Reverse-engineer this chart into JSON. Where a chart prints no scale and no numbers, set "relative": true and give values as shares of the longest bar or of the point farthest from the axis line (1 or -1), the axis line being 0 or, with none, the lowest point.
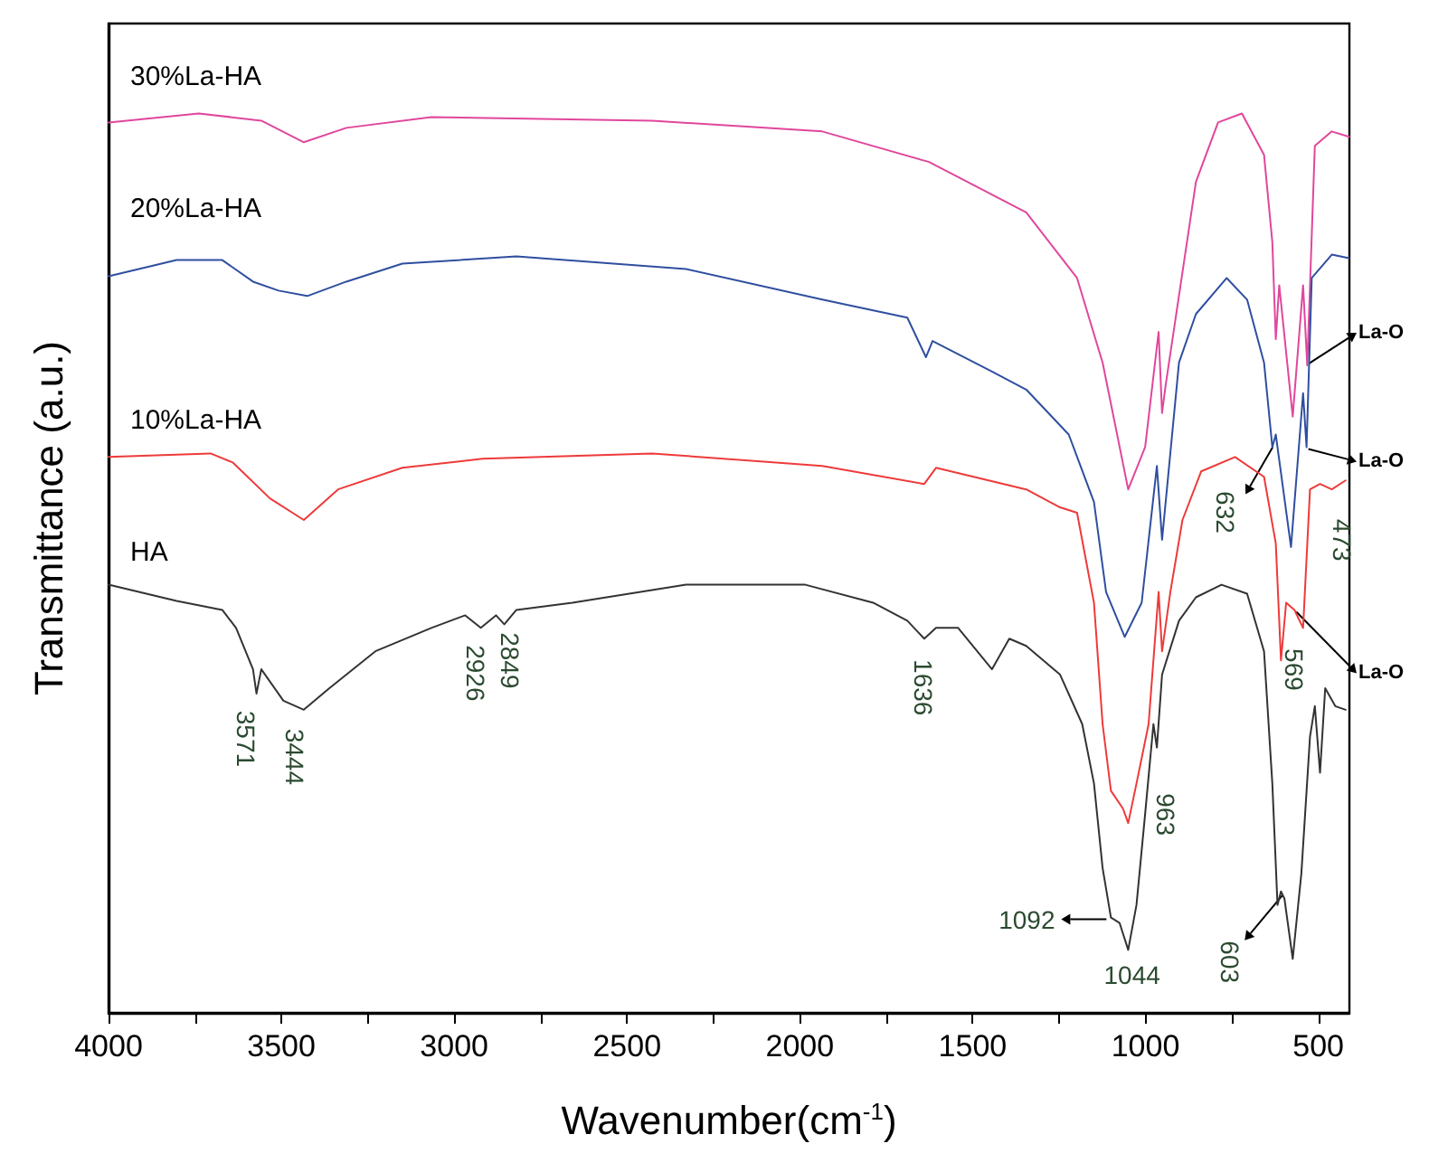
{
  "chart_data": {
    "type": "line",
    "relative": true,
    "xlabel": "Wavenumber(cm$^{-1}$)",
    "ylabel": "Transmittance (a.u.)",
    "xlim": [
      4000,
      410
    ],
    "xticks": [
      4000,
      {
        "value": 3750,
        "label": null
      },
      3500,
      {
        "value": 3250,
        "label": null
      },
      3000,
      {
        "value": 2750,
        "label": null
      },
      2500,
      {
        "value": 2250,
        "label": null
      },
      2000,
      {
        "value": 1750,
        "label": null
      },
      1500,
      {
        "value": 1250,
        "label": null
      },
      1000,
      {
        "value": 750,
        "label": null
      },
      500
    ],
    "grid": false,
    "legend": false,
    "marker": "none",
    "line_style": "solid",
    "series": [
      {
        "name": "30%La-HA",
        "color": "#e0479c",
        "x": [
          4000,
          3739,
          3558,
          3435,
          3312,
          3066,
          2427,
          1935,
          1626,
          1345,
          1198,
          1124,
          1050,
          1001,
          962,
          952,
          942,
          854,
          790,
          721,
          657,
          633,
          623,
          613,
          574,
          544,
          532,
          510,
          461,
          411
        ],
        "values": [
          0.99,
          1.0,
          0.992,
          0.968,
          0.984,
          0.996,
          0.992,
          0.98,
          0.946,
          0.89,
          0.817,
          0.723,
          0.582,
          0.629,
          0.757,
          0.667,
          0.697,
          0.924,
          0.99,
          1.0,
          0.954,
          0.857,
          0.749,
          0.809,
          0.663,
          0.809,
          0.72,
          0.964,
          0.98,
          0.974
        ]
      },
      {
        "name": "20%La-HA",
        "color": "#2f4f9f",
        "x": [
          4000,
          3803,
          3671,
          3582,
          3508,
          3425,
          3312,
          3150,
          2820,
          2329,
          1935,
          1689,
          1635,
          1616,
          1444,
          1345,
          1222,
          1149,
          1114,
          1060,
          1011,
          967,
          952,
          903,
          854,
          765,
          706,
          657,
          633,
          623,
          579,
          544,
          534,
          519,
          461,
          411
        ],
        "values": [
          0.819,
          0.837,
          0.837,
          0.813,
          0.803,
          0.797,
          0.813,
          0.833,
          0.841,
          0.827,
          0.793,
          0.773,
          0.729,
          0.747,
          0.713,
          0.693,
          0.643,
          0.568,
          0.468,
          0.418,
          0.456,
          0.608,
          0.526,
          0.723,
          0.777,
          0.817,
          0.793,
          0.723,
          0.629,
          0.643,
          0.518,
          0.689,
          0.629,
          0.817,
          0.843,
          0.839
        ]
      },
      {
        "name": "10%La-HA",
        "color": "#ee3a3a",
        "x": [
          4000,
          3705,
          3641,
          3533,
          3435,
          3336,
          3150,
          2918,
          2427,
          1935,
          1640,
          1606,
          1345,
          1247,
          1198,
          1149,
          1124,
          1100,
          1065,
          1050,
          1026,
          991,
          962,
          952,
          928,
          893,
          839,
          741,
          657,
          623,
          608,
          593,
          569,
          544,
          524,
          495,
          461,
          421
        ],
        "values": [
          0.618,
          0.622,
          0.612,
          0.572,
          0.548,
          0.582,
          0.606,
          0.616,
          0.622,
          0.608,
          0.588,
          0.606,
          0.582,
          0.562,
          0.556,
          0.456,
          0.321,
          0.247,
          0.227,
          0.211,
          0.255,
          0.321,
          0.468,
          0.402,
          0.468,
          0.548,
          0.602,
          0.618,
          0.596,
          0.522,
          0.392,
          0.456,
          0.448,
          0.428,
          0.582,
          0.588,
          0.582,
          0.592
        ]
      },
      {
        "name": "HA",
        "color": "#333333",
        "x": [
          4000,
          3803,
          3671,
          3631,
          3582,
          3572,
          3558,
          3494,
          3435,
          3361,
          3228,
          3066,
          2968,
          2923,
          2879,
          2855,
          2820,
          2658,
          2329,
          1984,
          1788,
          1689,
          1640,
          1606,
          1542,
          1444,
          1394,
          1345,
          1247,
          1183,
          1149,
          1124,
          1100,
          1075,
          1050,
          1026,
          1001,
          977,
          967,
          952,
          903,
          854,
          780,
          706,
          657,
          633,
          618,
          608,
          598,
          574,
          549,
          524,
          510,
          495,
          480,
          451,
          421
        ],
        "values": [
          0.476,
          0.458,
          0.448,
          0.428,
          0.382,
          0.355,
          0.382,
          0.347,
          0.337,
          0.361,
          0.402,
          0.428,
          0.442,
          0.428,
          0.442,
          0.432,
          0.448,
          0.456,
          0.476,
          0.476,
          0.456,
          0.436,
          0.416,
          0.428,
          0.428,
          0.382,
          0.416,
          0.408,
          0.376,
          0.321,
          0.255,
          0.161,
          0.106,
          0.1,
          0.07,
          0.12,
          0.221,
          0.321,
          0.295,
          0.376,
          0.436,
          0.462,
          0.476,
          0.466,
          0.402,
          0.255,
          0.12,
          0.135,
          0.127,
          0.06,
          0.155,
          0.307,
          0.341,
          0.267,
          0.361,
          0.341,
          0.337
        ]
      }
    ],
    "annotations": [
      {
        "text": "3571",
        "x": 3571,
        "y": 0.355
      },
      {
        "text": "3444",
        "x": 3444,
        "y": 0.337
      },
      {
        "text": "2926",
        "x": 2926,
        "y": 0.428
      },
      {
        "text": "2849",
        "x": 2849,
        "y": 0.432
      },
      {
        "text": "1636",
        "x": 1636,
        "y": 0.416
      },
      {
        "text": "963",
        "x": 963,
        "y": 0.295
      },
      {
        "text": "1092",
        "x": 1092,
        "y": 0.104
      },
      {
        "text": "1044",
        "x": 1044,
        "y": 0.07
      },
      {
        "text": "603",
        "x": 603,
        "y": 0.131
      },
      {
        "text": "632",
        "x": 632,
        "y": 0.629
      },
      {
        "text": "473",
        "x": 473,
        "y": 0.588
      },
      {
        "text": "569",
        "x": 569,
        "y": 0.448
      },
      {
        "text": "La-O",
        "x": 532,
        "y": 0.72
      },
      {
        "text": "La-O",
        "x": 534,
        "y": 0.629
      },
      {
        "text": "La-O",
        "x": 569,
        "y": 0.448
      }
    ]
  }
}
